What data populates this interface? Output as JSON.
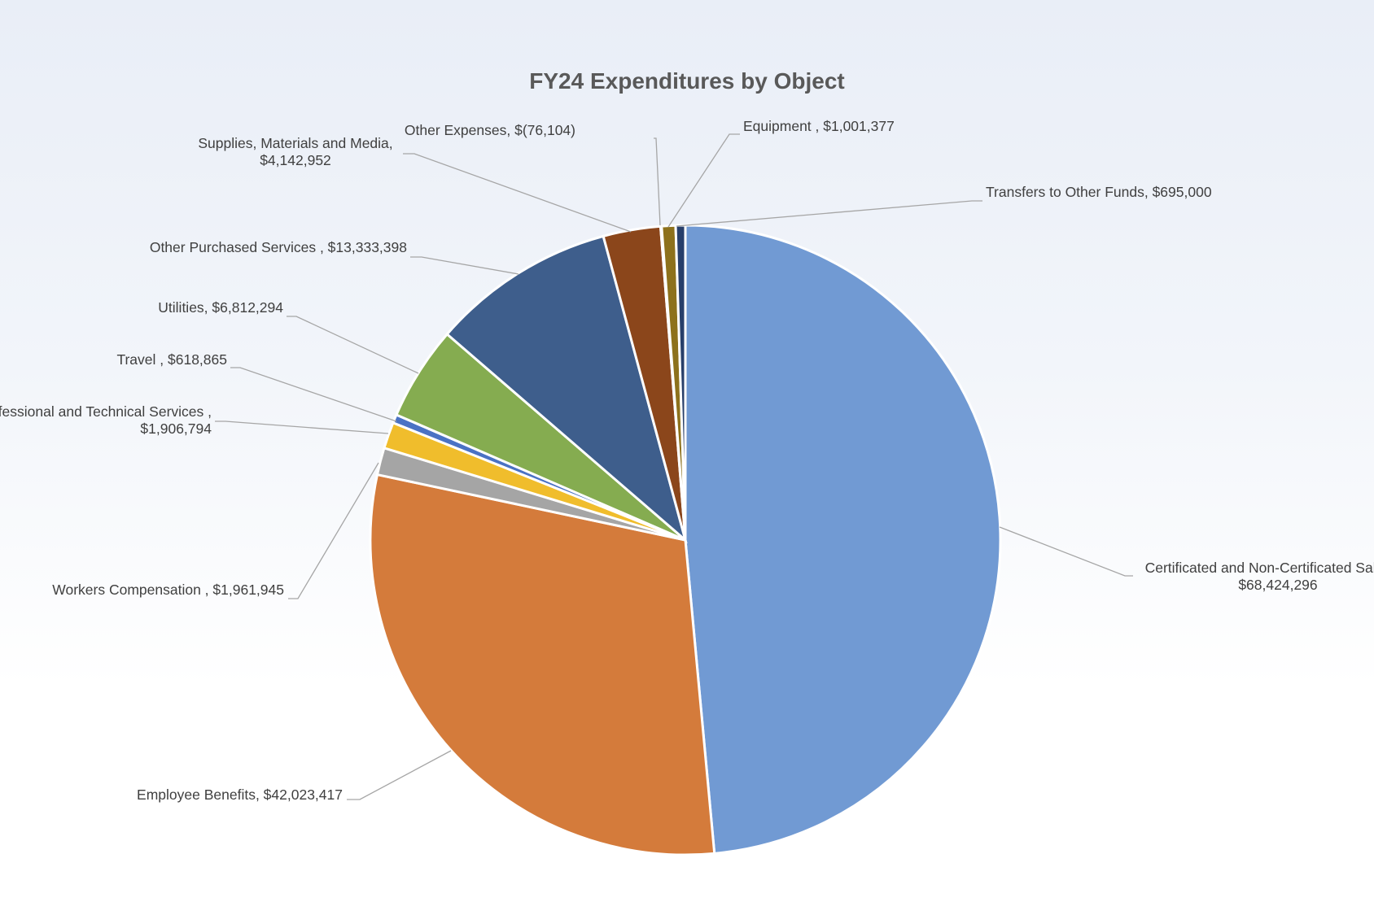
{
  "chart_data": {
    "type": "pie",
    "title": "FY24 Expenditures by Object",
    "series": [
      {
        "name": "Certificated and Non-Certificated Salaries",
        "label_line1": "Certificated and Non-Certificated Salaries,",
        "label_line2": "$68,424,296",
        "value": 68424296,
        "color": "#719ad3"
      },
      {
        "name": "Employee Benefits",
        "label_line1": "Employee Benefits,  $42,023,417",
        "label_line2": "",
        "value": 42023417,
        "color": "#d47b3b"
      },
      {
        "name": "Workers Compensation",
        "label_line1": "Workers Compensation ,  $1,961,945",
        "label_line2": "",
        "value": 1961945,
        "color": "#a5a5a5"
      },
      {
        "name": "Professional and Technical Services",
        "label_line1": "Professional and Technical Services ,",
        "label_line2": "$1,906,794",
        "value": 1906794,
        "color": "#f0bd2c"
      },
      {
        "name": "Travel",
        "label_line1": "Travel ,  $618,865",
        "label_line2": "",
        "value": 618865,
        "color": "#4a72c4"
      },
      {
        "name": "Utilities",
        "label_line1": "Utilities,  $6,812,294",
        "label_line2": "",
        "value": 6812294,
        "color": "#85ac50"
      },
      {
        "name": "Other Purchased Services",
        "label_line1": "Other Purchased Services ,  $13,333,398",
        "label_line2": "",
        "value": 13333398,
        "color": "#3e5e8c"
      },
      {
        "name": "Supplies, Materials and Media",
        "label_line1": "Supplies, Materials and Media,",
        "label_line2": "$4,142,952",
        "value": 4142952,
        "color": "#8b461b"
      },
      {
        "name": "Other Expenses",
        "label_line1": "Other Expenses,  $(76,104)",
        "label_line2": "",
        "value": -76104,
        "color": "#ffffff"
      },
      {
        "name": "Equipment",
        "label_line1": "Equipment ,  $1,001,377",
        "label_line2": "",
        "value": 1001377,
        "color": "#8d711c"
      },
      {
        "name": "Transfers to Other Funds",
        "label_line1": "Transfers to Other Funds,  $695,000",
        "label_line2": "",
        "value": 695000,
        "color": "#283f6a"
      }
    ],
    "legend": "none",
    "grid": false,
    "data_labels": "outside with leader lines"
  }
}
